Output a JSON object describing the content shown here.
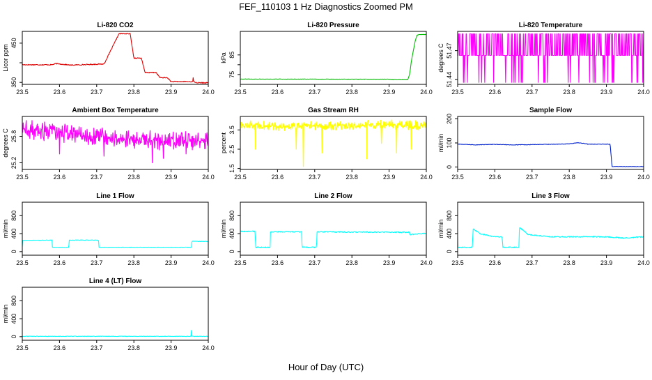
{
  "figure": {
    "title": "FEF_110103  1 Hz Diagnostics Zoomed PM",
    "xlabel": "Hour of Day (UTC)"
  },
  "chart_data": [
    {
      "type": "line",
      "title": "Li-820 CO2",
      "ylabel": "Licor ppm",
      "color": "#dd0000",
      "xlim": [
        23.5,
        24.0
      ],
      "ylim": [
        345,
        480
      ],
      "xticks": [
        "23.5",
        "23.6",
        "23.7",
        "23.8",
        "23.9",
        "24.0"
      ],
      "yticks": [
        350,
        400,
        450
      ],
      "ytick_labels": [
        "350",
        "",
        "450"
      ],
      "style": "step",
      "noise": 1.2,
      "x": [
        23.5,
        23.58,
        23.59,
        23.63,
        23.72,
        23.76,
        23.79,
        23.8,
        23.82,
        23.83,
        23.86,
        23.87,
        23.89,
        23.9,
        23.96,
        23.97,
        24.0
      ],
      "y": [
        395,
        395,
        398,
        394,
        397,
        474,
        474,
        412,
        412,
        375,
        375,
        362,
        362,
        352,
        352,
        349,
        349
      ],
      "spikes": [
        [
          23.96,
          362
        ]
      ]
    },
    {
      "type": "line",
      "title": "Li-820 Pressure",
      "ylabel": "kPa",
      "color": "#00bb00",
      "xlim": [
        23.5,
        24.0
      ],
      "ylim": [
        70,
        97
      ],
      "xticks": [
        "23.5",
        "23.6",
        "23.7",
        "23.8",
        "23.9",
        "24.0"
      ],
      "yticks": [
        75,
        80,
        85
      ],
      "ytick_labels": [
        "75",
        "",
        "85"
      ],
      "style": "line",
      "noise": 0.1,
      "x": [
        23.5,
        23.9,
        23.91,
        23.95,
        23.955,
        23.96,
        23.965,
        23.97,
        23.975,
        23.98,
        24.0
      ],
      "y": [
        72.7,
        72.6,
        72.4,
        72.4,
        75,
        82,
        87,
        92,
        95,
        95.4,
        95.4
      ],
      "spikes": []
    },
    {
      "type": "line",
      "title": "Li-820 Temperature",
      "ylabel": "degrees C",
      "color": "#ff00ff",
      "xlim": [
        23.5,
        24.0
      ],
      "ylim": [
        51.435,
        51.49
      ],
      "xticks": [
        "23.5",
        "23.6",
        "23.7",
        "23.8",
        "23.9",
        "24.0"
      ],
      "yticks": [
        51.44,
        51.47
      ],
      "ytick_labels": [
        "51.44",
        "51.47"
      ],
      "style": "flicker",
      "levels": [
        51.465,
        51.4875,
        51.437
      ],
      "x": [
        23.5,
        24.0
      ],
      "y": [
        51.465,
        51.465
      ],
      "spikes": []
    },
    {
      "type": "line",
      "title": "Ambient Box Temperature",
      "ylabel": "degrees C",
      "color": "#ff00ff",
      "xlim": [
        23.5,
        24.0
      ],
      "ylim": [
        25.05,
        26.25
      ],
      "xticks": [
        "23.5",
        "23.6",
        "23.7",
        "23.8",
        "23.9",
        "24.0"
      ],
      "yticks": [
        25.2,
        25.8
      ],
      "ytick_labels": [
        "25.2",
        "25.8"
      ],
      "style": "band",
      "noise": 0.12,
      "x": [
        23.5,
        23.55,
        23.6,
        23.65,
        23.7,
        23.75,
        23.8,
        23.85,
        23.9,
        23.95,
        24.0
      ],
      "y": [
        25.95,
        25.92,
        25.88,
        25.85,
        25.8,
        25.76,
        25.74,
        25.72,
        25.7,
        25.72,
        25.72
      ],
      "spikes": [
        [
          23.6,
          25.4
        ],
        [
          23.72,
          25.35
        ],
        [
          23.85,
          25.2
        ],
        [
          23.88,
          25.3
        ],
        [
          23.94,
          25.4
        ]
      ]
    },
    {
      "type": "line",
      "title": "Gas Stream RH",
      "ylabel": "percent",
      "color": "#ffff00",
      "xlim": [
        23.5,
        24.0
      ],
      "ylim": [
        1.45,
        4.2
      ],
      "xticks": [
        "23.5",
        "23.6",
        "23.7",
        "23.8",
        "23.9",
        "24.0"
      ],
      "yticks": [
        1.5,
        2.5,
        3.5
      ],
      "ytick_labels": [
        "1.5",
        "2.5",
        "3.5"
      ],
      "style": "band",
      "noise": 0.14,
      "x": [
        23.5,
        23.6,
        23.7,
        23.8,
        23.9,
        24.0
      ],
      "y": [
        3.75,
        3.72,
        3.72,
        3.72,
        3.75,
        3.72
      ],
      "spikes": [
        [
          23.54,
          2.5
        ],
        [
          23.67,
          1.6
        ],
        [
          23.65,
          2.5
        ],
        [
          23.72,
          2.3
        ],
        [
          23.84,
          2.0
        ],
        [
          23.88,
          2.8
        ],
        [
          23.92,
          2.3
        ],
        [
          23.96,
          2.5
        ]
      ]
    },
    {
      "type": "line",
      "title": "Sample Flow",
      "ylabel": "ml/min",
      "color": "#0022cc",
      "xlim": [
        23.5,
        24.0
      ],
      "ylim": [
        -10,
        210
      ],
      "xticks": [
        "23.5",
        "23.6",
        "23.7",
        "23.8",
        "23.9",
        "24.0"
      ],
      "yticks": [
        0,
        100,
        200
      ],
      "ytick_labels": [
        "0",
        "100",
        "200"
      ],
      "style": "line",
      "noise": 1,
      "x": [
        23.5,
        23.55,
        23.6,
        23.65,
        23.7,
        23.8,
        23.82,
        23.84,
        23.85,
        23.91,
        23.915,
        24.0
      ],
      "y": [
        95,
        92,
        94,
        92,
        93,
        96,
        101,
        98,
        95,
        95,
        2,
        2
      ],
      "spikes": []
    },
    {
      "type": "line",
      "title": "Line 1 Flow",
      "ylabel": "ml/min",
      "color": "#00ffff",
      "xlim": [
        23.5,
        24.0
      ],
      "ylim": [
        -80,
        1100
      ],
      "xticks": [
        "23.5",
        "23.6",
        "23.7",
        "23.8",
        "23.9",
        "24.0"
      ],
      "yticks": [
        0,
        400,
        800
      ],
      "ytick_labels": [
        "0",
        "400",
        "800"
      ],
      "style": "step",
      "noise": 5,
      "x": [
        23.5,
        23.58,
        23.581,
        23.625,
        23.626,
        23.705,
        23.706,
        23.955,
        23.956,
        24.0
      ],
      "y": [
        250,
        255,
        95,
        95,
        255,
        255,
        95,
        95,
        230,
        225
      ],
      "spikes": [
        [
          23.5,
          110
        ]
      ]
    },
    {
      "type": "line",
      "title": "Line 2 Flow",
      "ylabel": "ml/min",
      "color": "#00ffff",
      "xlim": [
        23.5,
        24.0
      ],
      "ylim": [
        -80,
        1100
      ],
      "xticks": [
        "23.5",
        "23.6",
        "23.7",
        "23.8",
        "23.9",
        "24.0"
      ],
      "yticks": [
        0,
        400,
        800
      ],
      "ytick_labels": [
        "0",
        "400",
        "800"
      ],
      "style": "step",
      "noise": 12,
      "x": [
        23.5,
        23.54,
        23.541,
        23.58,
        23.581,
        23.665,
        23.666,
        23.705,
        23.706,
        23.955,
        23.956,
        24.0
      ],
      "y": [
        450,
        450,
        95,
        95,
        440,
        440,
        95,
        95,
        440,
        430,
        380,
        410
      ],
      "spikes": []
    },
    {
      "type": "line",
      "title": "Line 3 Flow",
      "ylabel": "ml/min",
      "color": "#00ffff",
      "xlim": [
        23.5,
        24.0
      ],
      "ylim": [
        -80,
        1100
      ],
      "xticks": [
        "23.5",
        "23.6",
        "23.7",
        "23.8",
        "23.9",
        "24.0"
      ],
      "yticks": [
        0,
        400,
        800
      ],
      "ytick_labels": [
        "0",
        "400",
        "800"
      ],
      "style": "step",
      "noise": 12,
      "x": [
        23.5,
        23.501,
        23.54,
        23.541,
        23.56,
        23.6,
        23.62,
        23.621,
        23.665,
        23.666,
        23.69,
        23.75,
        23.9,
        23.95,
        24.0
      ],
      "y": [
        320,
        95,
        95,
        510,
        400,
        330,
        330,
        95,
        95,
        540,
        380,
        330,
        330,
        300,
        330
      ],
      "spikes": []
    },
    {
      "type": "line",
      "title": "Line 4 (LT) Flow",
      "ylabel": "ml/min",
      "color": "#00ffff",
      "xlim": [
        23.5,
        24.0
      ],
      "ylim": [
        -80,
        1100
      ],
      "xticks": [
        "23.5",
        "23.6",
        "23.7",
        "23.8",
        "23.9",
        "24.0"
      ],
      "yticks": [
        0,
        400,
        800
      ],
      "ytick_labels": [
        "0",
        "400",
        "800"
      ],
      "style": "line",
      "noise": 5,
      "x": [
        23.5,
        24.0
      ],
      "y": [
        8,
        8
      ],
      "spikes": [
        [
          23.955,
          140
        ]
      ]
    }
  ]
}
